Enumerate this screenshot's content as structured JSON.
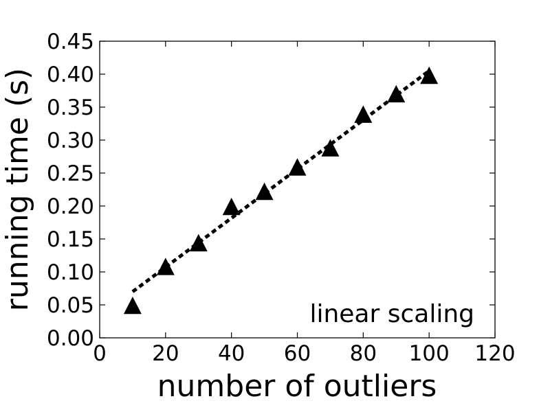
{
  "chart_data": {
    "type": "scatter",
    "title": "",
    "xlabel": "number of outliers",
    "ylabel": "running time (s)",
    "xlim": [
      0,
      120
    ],
    "ylim": [
      0,
      0.45
    ],
    "xticks": [
      "0",
      "20",
      "40",
      "60",
      "80",
      "100",
      "120"
    ],
    "yticks": [
      "0.00",
      "0.05",
      "0.10",
      "0.15",
      "0.20",
      "0.25",
      "0.30",
      "0.35",
      "0.40",
      "0.45"
    ],
    "grid": false,
    "annotation": "linear scaling",
    "series": [
      {
        "marker": "triangle",
        "color": "#000000",
        "x": [
          10,
          20,
          30,
          40,
          50,
          60,
          70,
          80,
          90,
          100
        ],
        "y": [
          0.049,
          0.108,
          0.144,
          0.199,
          0.222,
          0.259,
          0.288,
          0.339,
          0.37,
          0.398
        ]
      },
      {
        "style": "dotted-line",
        "color": "#000000",
        "x": [
          10,
          100
        ],
        "y": [
          0.07,
          0.405
        ]
      }
    ]
  }
}
